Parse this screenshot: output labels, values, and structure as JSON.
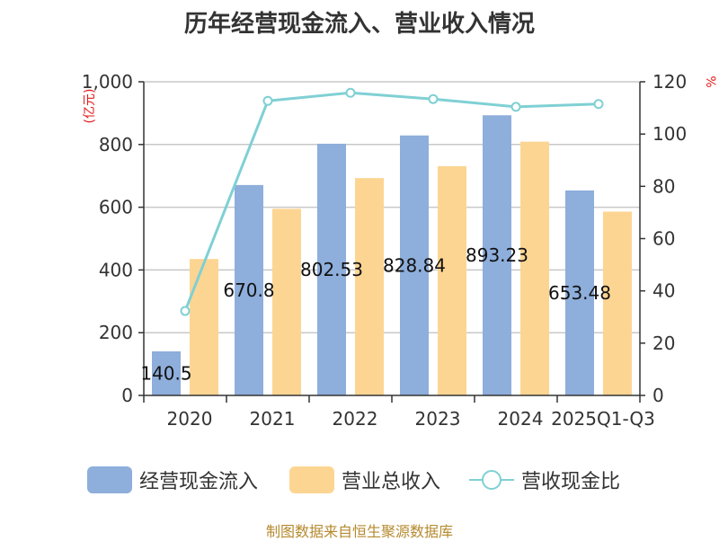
{
  "chart_data": {
    "type": "bar",
    "title": "历年经营现金流入、营业收入情况",
    "left_unit": "(亿元)",
    "right_unit": "%",
    "categories": [
      "2020",
      "2021",
      "2022",
      "2023",
      "2024",
      "2025Q1-Q3"
    ],
    "y_left": {
      "min": 0,
      "max": 1000,
      "ticks": [
        "0",
        "200",
        "400",
        "600",
        "800",
        "1,000"
      ]
    },
    "y_right": {
      "min": 0,
      "max": 120,
      "ticks": [
        "0",
        "20",
        "40",
        "60",
        "80",
        "100",
        "120"
      ]
    },
    "series": [
      {
        "name": "经营现金流入",
        "type": "bar",
        "axis": "left",
        "color": "#8eaedb",
        "values": [
          140.5,
          670.8,
          802.53,
          828.84,
          893.23,
          653.48
        ],
        "labels": [
          "140.5",
          "670.8",
          "802.53",
          "828.84",
          "893.23",
          "653.48"
        ]
      },
      {
        "name": "营业总收入",
        "type": "bar",
        "axis": "left",
        "color": "#fdd592",
        "values": [
          435,
          595,
          693,
          731,
          809,
          586
        ]
      },
      {
        "name": "营收现金比",
        "type": "line",
        "axis": "right",
        "color": "#7fd0d4",
        "values": [
          32.3,
          112.7,
          115.8,
          113.4,
          110.4,
          111.5
        ]
      }
    ],
    "grid": true,
    "legend_position": "bottom"
  },
  "footer": {
    "source": "制图数据来自恒生聚源数据库"
  }
}
